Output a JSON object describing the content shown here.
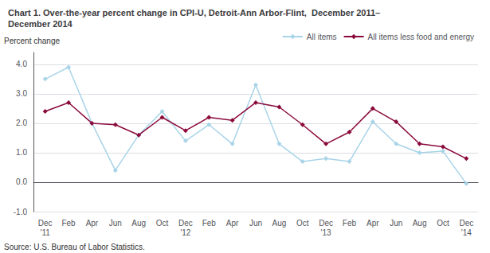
{
  "chart_data": {
    "type": "line",
    "title": "Chart 1. Over-the-year percent change in CPI-U, Detroit-Ann Arbor-Flint,  December 2011–\nDecember 2014",
    "y_label": "Percent change",
    "annotations": [
      "Source: U.S. Bureau of Labor Statistics."
    ],
    "categories": [
      "Dec\n'11",
      "Feb",
      "Apr",
      "Jun",
      "Aug",
      "Oct",
      "Dec\n'12",
      "Feb",
      "Apr",
      "Jun",
      "Aug",
      "Oct",
      "Dec\n'13",
      "Feb",
      "Apr",
      "Jun",
      "Aug",
      "Oct",
      "Dec\n'14"
    ],
    "series": [
      {
        "name": "All items",
        "color": "#a8d4e8",
        "values": [
          3.5,
          3.9,
          2.0,
          0.4,
          1.6,
          2.4,
          1.4,
          1.95,
          1.3,
          3.3,
          1.3,
          0.7,
          0.8,
          0.7,
          2.05,
          1.3,
          1.0,
          1.05,
          -0.05
        ]
      },
      {
        "name": "All items less food and energy",
        "color": "#8b0a3c",
        "values": [
          2.4,
          2.7,
          2.0,
          1.95,
          1.6,
          2.2,
          1.75,
          2.2,
          2.1,
          2.7,
          2.55,
          1.95,
          1.3,
          1.7,
          2.5,
          2.05,
          1.3,
          1.2,
          0.8
        ]
      }
    ],
    "ylim": [
      -1.0,
      4.4
    ],
    "yticks": [
      {
        "value": -1.0,
        "label": "-1.0"
      },
      {
        "value": 0.0,
        "label": "0.0"
      },
      {
        "value": 1.0,
        "label": "1.0"
      },
      {
        "value": 2.0,
        "label": "2.0"
      },
      {
        "value": 3.0,
        "label": "3.0"
      },
      {
        "value": 4.0,
        "label": "4.0"
      }
    ],
    "marker": "diamond",
    "grid": true,
    "legend": "upper right"
  }
}
